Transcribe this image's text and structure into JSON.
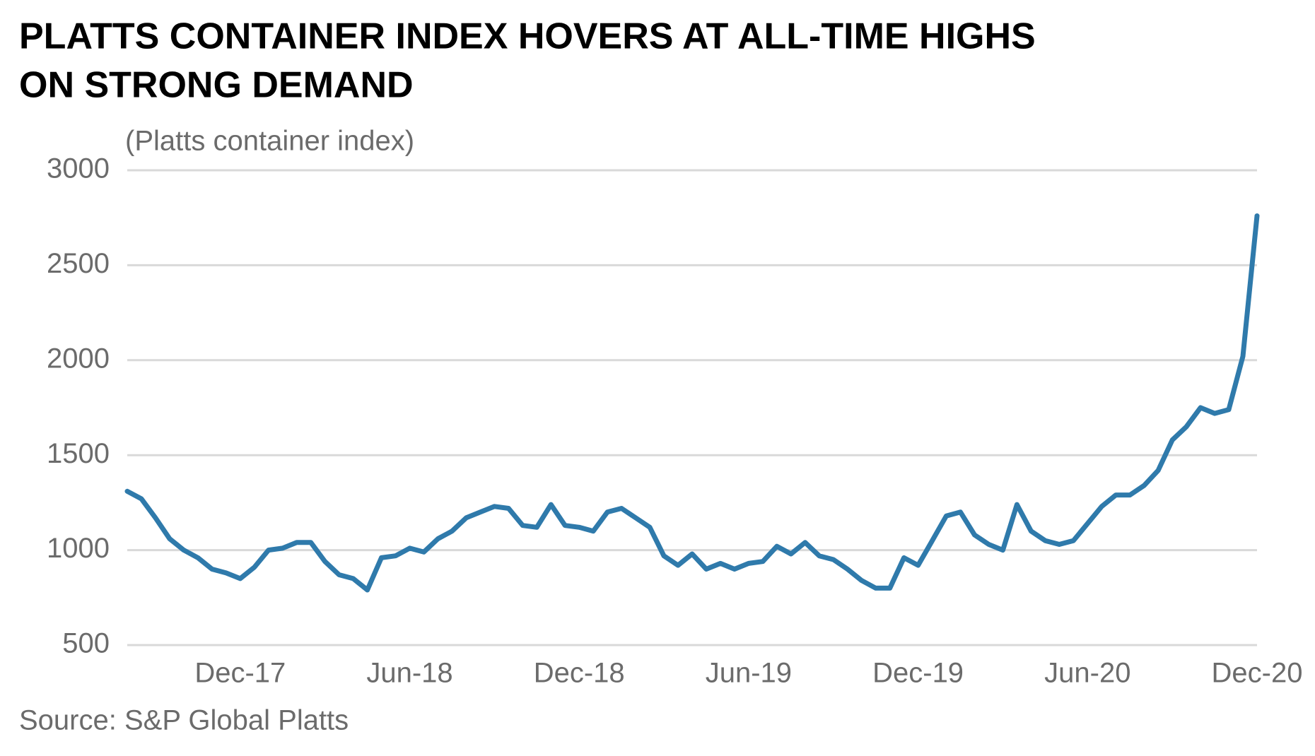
{
  "chart_data": {
    "type": "line",
    "title": [
      "PLATTS CONTAINER INDEX HOVERS AT ALL-TIME HIGHS",
      "ON STRONG DEMAND"
    ],
    "y_label": "(Platts container index)",
    "source": "Source: S&P Global Platts",
    "categories": [
      null,
      null,
      null,
      null,
      null,
      null,
      null,
      null,
      "Dec-17",
      null,
      null,
      null,
      null,
      null,
      null,
      null,
      null,
      null,
      null,
      null,
      "Jun-18",
      null,
      null,
      null,
      null,
      null,
      null,
      null,
      null,
      null,
      null,
      null,
      "Dec-18",
      null,
      null,
      null,
      null,
      null,
      null,
      null,
      null,
      null,
      null,
      null,
      "Jun-19",
      null,
      null,
      null,
      null,
      null,
      null,
      null,
      null,
      null,
      null,
      null,
      "Dec-19",
      null,
      null,
      null,
      null,
      null,
      null,
      null,
      null,
      null,
      null,
      null,
      "Jun-20",
      null,
      null,
      null,
      null,
      null,
      null,
      null,
      null,
      null,
      null,
      null,
      "Dec-20"
    ],
    "values": [
      1310,
      1270,
      1170,
      1060,
      1000,
      960,
      900,
      880,
      850,
      910,
      1000,
      1010,
      1040,
      1040,
      940,
      870,
      850,
      790,
      960,
      970,
      1010,
      990,
      1060,
      1100,
      1170,
      1200,
      1230,
      1220,
      1130,
      1120,
      1240,
      1130,
      1120,
      1100,
      1200,
      1220,
      1170,
      1120,
      970,
      920,
      980,
      900,
      930,
      900,
      930,
      940,
      1020,
      980,
      1040,
      970,
      950,
      900,
      840,
      800,
      800,
      960,
      920,
      1050,
      1180,
      1200,
      1080,
      1030,
      1000,
      1240,
      1100,
      1050,
      1030,
      1050,
      1140,
      1230,
      1290,
      1290,
      1340,
      1420,
      1580,
      1650,
      1750,
      1720,
      1740,
      2020,
      2760
    ],
    "color": "#2f7aab",
    "ylim": [
      500,
      3000
    ],
    "yticks": [
      500,
      1000,
      1500,
      2000,
      2500,
      3000
    ],
    "grid": true
  }
}
